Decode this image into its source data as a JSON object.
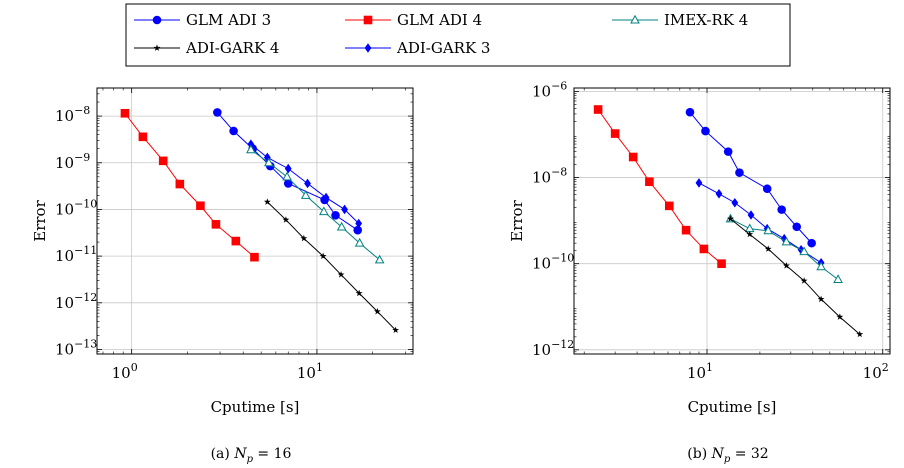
{
  "legend": [
    {
      "label": "GLM ADI 3",
      "color": "#0000ff",
      "marker": "circle"
    },
    {
      "label": "GLM ADI 4",
      "color": "#ff0000",
      "marker": "square"
    },
    {
      "label": "IMEX-RK 4",
      "color": "#008080",
      "marker": "open-triangle"
    },
    {
      "label": "ADI-GARK 4",
      "color": "#000000",
      "marker": "star"
    },
    {
      "label": "ADI-GARK 3",
      "color": "#0000ff",
      "marker": "diamond"
    }
  ],
  "chart_data": [
    {
      "type": "line",
      "xscale": "log",
      "yscale": "log",
      "xlim": [
        0.65,
        33
      ],
      "ylim": [
        8e-14,
        4e-08
      ],
      "xlabel": "Cputime [s]",
      "ylabel": "Error",
      "caption_prefix": "(a)",
      "caption_var": "N",
      "caption_sub": "p",
      "caption_value": "= 16",
      "xticks": [
        {
          "value": 1,
          "exp": "0"
        },
        {
          "value": 10,
          "exp": "1"
        }
      ],
      "yticks": [
        {
          "value": 1e-13,
          "exp": "−13"
        },
        {
          "value": 1e-12,
          "exp": "−12"
        },
        {
          "value": 1e-11,
          "exp": "−11"
        },
        {
          "value": 1e-10,
          "exp": "−10"
        },
        {
          "value": 1e-09,
          "exp": "−9"
        },
        {
          "value": 1e-08,
          "exp": "−8"
        }
      ],
      "grid": true,
      "series": [
        {
          "name": "GLM ADI 4",
          "x": [
            0.92,
            1.15,
            1.48,
            1.82,
            2.35,
            2.85,
            3.65,
            4.6
          ],
          "y": [
            1.15e-08,
            3.6e-09,
            1.1e-09,
            3.5e-10,
            1.2e-10,
            4.8e-11,
            2.1e-11,
            9.5e-12
          ]
        },
        {
          "name": "ADI-GARK 3",
          "x": [
            4.4,
            5.4,
            7.0,
            8.9,
            11.2,
            14.1,
            16.8
          ],
          "y": [
            2.5e-09,
            1.3e-09,
            7.5e-10,
            3.6e-10,
            1.8e-10,
            1e-10,
            5e-11
          ]
        },
        {
          "name": "GLM ADI 3",
          "x": [
            2.9,
            3.55,
            4.5,
            5.6,
            7.0,
            11.0,
            12.6,
            16.6
          ],
          "y": [
            1.2e-08,
            4.8e-09,
            2e-09,
            8.5e-10,
            3.6e-10,
            1.6e-10,
            7.5e-11,
            3.6e-11
          ]
        },
        {
          "name": "IMEX-RK 4",
          "x": [
            4.4,
            5.5,
            6.9,
            8.7,
            10.9,
            13.6,
            17.0,
            21.8
          ],
          "y": [
            1.9e-09,
            1e-09,
            5e-10,
            2e-10,
            9e-11,
            4.2e-11,
            1.9e-11,
            8.3e-12
          ]
        },
        {
          "name": "ADI-GARK 4",
          "x": [
            5.4,
            6.8,
            8.5,
            10.8,
            13.5,
            16.9,
            21.2,
            26.6
          ],
          "y": [
            1.45e-10,
            6e-11,
            2.4e-11,
            1e-11,
            4e-12,
            1.6e-12,
            6.5e-13,
            2.6e-13
          ]
        }
      ]
    },
    {
      "type": "line",
      "xscale": "log",
      "yscale": "log",
      "xlim": [
        1.75,
        110
      ],
      "ylim": [
        8e-13,
        1.2e-06
      ],
      "xlabel": "Cputime [s]",
      "ylabel": "Error",
      "caption_prefix": "(b)",
      "caption_var": "N",
      "caption_sub": "p",
      "caption_value": "= 32",
      "xticks": [
        {
          "value": 10,
          "exp": "1"
        },
        {
          "value": 100,
          "exp": "2"
        }
      ],
      "yticks": [
        {
          "value": 1e-12,
          "exp": "−12"
        },
        {
          "value": 1e-10,
          "exp": "−10"
        },
        {
          "value": 1e-08,
          "exp": "−8"
        },
        {
          "value": 1e-06,
          "exp": "−6"
        }
      ],
      "grid": true,
      "series": [
        {
          "name": "GLM ADI 4",
          "x": [
            2.4,
            3.0,
            3.8,
            4.7,
            6.1,
            7.6,
            9.6,
            12.1
          ],
          "y": [
            3.8e-07,
            1.05e-07,
            3e-08,
            8e-09,
            2.2e-09,
            6e-10,
            2.2e-10,
            1e-10
          ]
        },
        {
          "name": "GLM ADI 3",
          "x": [
            8.0,
            9.8,
            13.2,
            15.3,
            22.0,
            26.6,
            32.4,
            39.4
          ],
          "y": [
            3.3e-07,
            1.2e-07,
            4e-08,
            1.3e-08,
            5.5e-09,
            1.8e-09,
            7.2e-10,
            3e-10
          ]
        },
        {
          "name": "ADI-GARK 3",
          "x": [
            9.0,
            11.7,
            14.4,
            17.8,
            22.0,
            27.5,
            34.3,
            44.6
          ],
          "y": [
            7.5e-09,
            4.2e-09,
            2.6e-09,
            1.35e-09,
            6.5e-10,
            3.8e-10,
            2.1e-10,
            1.05e-10
          ]
        },
        {
          "name": "IMEX-RK 4",
          "x": [
            13.6,
            17.5,
            22.3,
            28.3,
            35.7,
            44.6,
            55.7
          ],
          "y": [
            1.1e-09,
            6.5e-10,
            5.8e-10,
            3.2e-10,
            1.9e-10,
            8.5e-11,
            4.3e-11
          ]
        },
        {
          "name": "ADI-GARK 4",
          "x": [
            13.6,
            17.5,
            22.3,
            28.3,
            35.7,
            44.6,
            57.0,
            74.0
          ],
          "y": [
            1.1e-09,
            4.8e-10,
            2.2e-10,
            9e-11,
            4e-11,
            1.5e-11,
            5.8e-12,
            2.3e-12
          ]
        }
      ]
    }
  ]
}
